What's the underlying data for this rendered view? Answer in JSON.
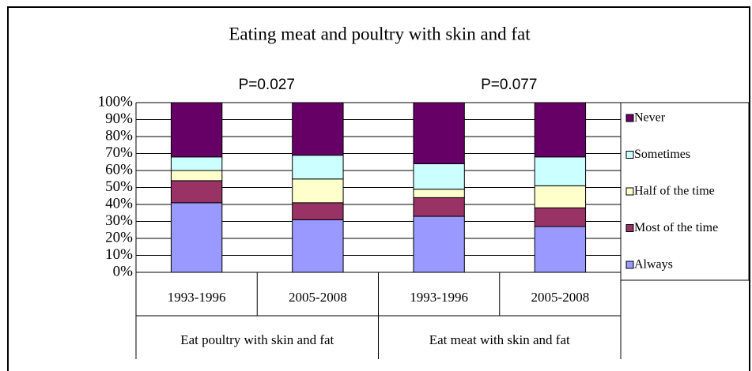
{
  "chart_data": {
    "type": "stacked_bar",
    "title": "Eating meat and poultry with skin and fat",
    "categories": [
      "1993-1996",
      "2005-2008",
      "1993-1996",
      "2005-2008"
    ],
    "groups": [
      "Eat poultry with skin and fat",
      "Eat meat with skin and fat"
    ],
    "group_annotations": [
      "P=0.027",
      "P=0.077"
    ],
    "series": [
      {
        "name": "Always",
        "color": "#9999ff",
        "values": [
          41,
          31,
          33,
          27
        ]
      },
      {
        "name": "Most of the time",
        "color": "#993366",
        "values": [
          13,
          10,
          11,
          11
        ]
      },
      {
        "name": "Half of the time",
        "color": "#ffffcc",
        "values": [
          6,
          14,
          5,
          13
        ]
      },
      {
        "name": "Sometimes",
        "color": "#ccffff",
        "values": [
          8,
          14,
          15,
          17
        ]
      },
      {
        "name": "Never",
        "color": "#660066",
        "values": [
          32,
          31,
          36,
          32
        ]
      }
    ],
    "ylim": [
      0,
      100
    ],
    "yticks": [
      {
        "value": 0,
        "label": "0%"
      },
      {
        "value": 10,
        "label": "10%"
      },
      {
        "value": 20,
        "label": "20%"
      },
      {
        "value": 30,
        "label": "30%"
      },
      {
        "value": 40,
        "label": "40%"
      },
      {
        "value": 50,
        "label": "50%"
      },
      {
        "value": 60,
        "label": "60%"
      },
      {
        "value": 70,
        "label": "70%"
      },
      {
        "value": 80,
        "label": "80%"
      },
      {
        "value": 90,
        "label": "90%"
      },
      {
        "value": 100,
        "label": "100%"
      }
    ],
    "grid": true,
    "legend": "right"
  }
}
